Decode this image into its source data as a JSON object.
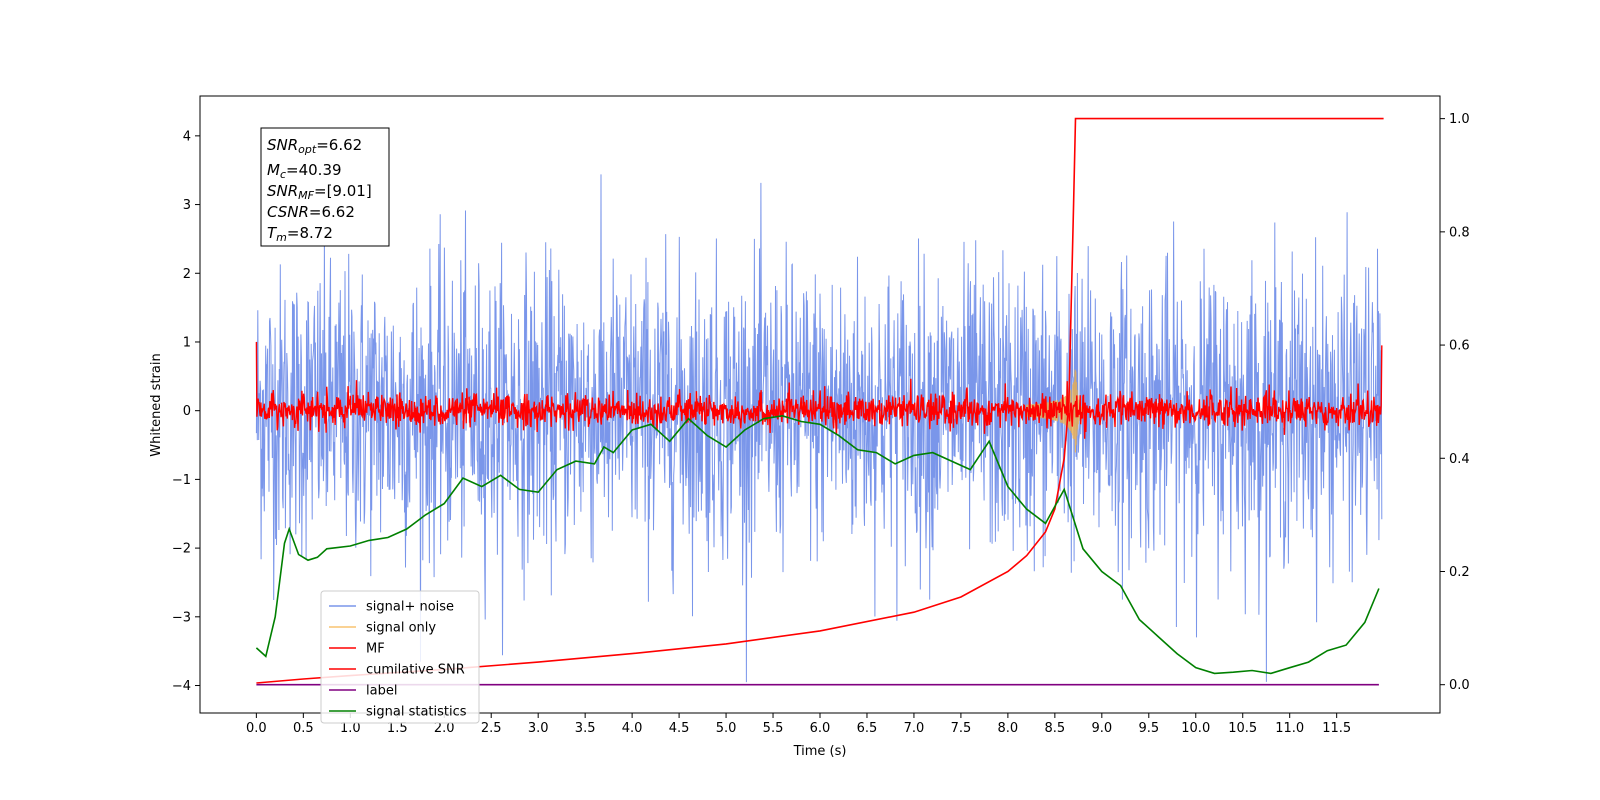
{
  "chart_data": {
    "type": "line",
    "xlabel": "Time (s)",
    "ylabel": "Whitened strain",
    "xlim": [
      -0.6,
      12.6
    ],
    "ylim": [
      -4.4,
      4.58
    ],
    "y2lim": [
      -0.05,
      1.04
    ],
    "grid": false,
    "legend_position": "lower-left",
    "x_ticks": [
      "0.0",
      "0.5",
      "1.0",
      "1.5",
      "2.0",
      "2.5",
      "3.0",
      "3.5",
      "4.0",
      "4.5",
      "5.0",
      "5.5",
      "6.0",
      "6.5",
      "7.0",
      "7.5",
      "8.0",
      "8.5",
      "9.0",
      "9.5",
      "10.0",
      "10.5",
      "11.0",
      "11.5"
    ],
    "y_ticks": [
      "4",
      "3",
      "2",
      "1",
      "0",
      "−1",
      "−2",
      "−3",
      "−4"
    ],
    "y2_ticks": [
      "1.0",
      "0.8",
      "0.6",
      "0.4",
      "0.2",
      "0.0"
    ],
    "annotation": {
      "snr_opt": {
        "label": "SNR",
        "sub": "opt",
        "value": "=6.62"
      },
      "mc": {
        "label": "M",
        "sub": "c",
        "value": "=40.39"
      },
      "snr_mf": {
        "label": "SNR",
        "sub": "MF",
        "value": "=[9.01]"
      },
      "csnr": {
        "label": "CSNR",
        "sub": "",
        "value": "=6.62"
      },
      "tm": {
        "label": "T",
        "sub": "m",
        "value": "=8.72"
      }
    },
    "series": [
      {
        "name": "signal+ noise",
        "color": "#4169e1",
        "axis": "left",
        "kind": "noise",
        "amplitude": 1.0,
        "peak_max": 4.15,
        "peak_min": -3.95
      },
      {
        "name": "signal only",
        "color": "#f5b041",
        "axis": "left",
        "kind": "chirp",
        "merger_time": 8.72,
        "peak_amplitude": 0.65
      },
      {
        "name": "MF",
        "color": "#ff0000",
        "axis": "left",
        "kind": "noise",
        "amplitude": 0.12,
        "start_value": 1.0,
        "end_value": 0.95
      },
      {
        "name": "cumilative SNR",
        "color": "#ff0000",
        "axis": "right",
        "x": [
          0.0,
          0.5,
          1.0,
          2.0,
          3.0,
          4.0,
          5.0,
          6.0,
          7.0,
          7.5,
          8.0,
          8.2,
          8.4,
          8.5,
          8.6,
          8.65,
          8.7,
          8.72,
          12.0
        ],
        "y": [
          0.003,
          0.01,
          0.016,
          0.027,
          0.04,
          0.055,
          0.072,
          0.095,
          0.128,
          0.155,
          0.2,
          0.228,
          0.27,
          0.31,
          0.4,
          0.5,
          0.85,
          1.0,
          1.0
        ]
      },
      {
        "name": "label",
        "color": "#800080",
        "axis": "right",
        "x": [
          0.0,
          11.95
        ],
        "y": [
          0.0,
          0.0
        ]
      },
      {
        "name": "signal statistics",
        "color": "#008000",
        "axis": "right",
        "x": [
          0.0,
          0.1,
          0.2,
          0.3,
          0.35,
          0.45,
          0.55,
          0.65,
          0.75,
          0.85,
          1.0,
          1.2,
          1.4,
          1.6,
          1.8,
          2.0,
          2.2,
          2.4,
          2.6,
          2.8,
          3.0,
          3.2,
          3.4,
          3.6,
          3.7,
          3.8,
          4.0,
          4.2,
          4.4,
          4.6,
          4.8,
          5.0,
          5.2,
          5.4,
          5.6,
          5.8,
          6.0,
          6.2,
          6.4,
          6.6,
          6.8,
          7.0,
          7.2,
          7.4,
          7.6,
          7.8,
          8.0,
          8.2,
          8.4,
          8.6,
          8.8,
          9.0,
          9.2,
          9.4,
          9.6,
          9.8,
          10.0,
          10.2,
          10.4,
          10.6,
          10.8,
          11.0,
          11.2,
          11.4,
          11.6,
          11.8,
          11.95
        ],
        "y": [
          0.065,
          0.05,
          0.12,
          0.25,
          0.275,
          0.23,
          0.22,
          0.225,
          0.24,
          0.242,
          0.245,
          0.255,
          0.26,
          0.275,
          0.3,
          0.32,
          0.365,
          0.35,
          0.37,
          0.345,
          0.34,
          0.38,
          0.395,
          0.39,
          0.42,
          0.41,
          0.45,
          0.46,
          0.43,
          0.47,
          0.44,
          0.42,
          0.45,
          0.47,
          0.475,
          0.465,
          0.46,
          0.44,
          0.415,
          0.41,
          0.39,
          0.405,
          0.41,
          0.395,
          0.38,
          0.43,
          0.35,
          0.31,
          0.285,
          0.345,
          0.24,
          0.2,
          0.175,
          0.115,
          0.085,
          0.055,
          0.03,
          0.02,
          0.022,
          0.025,
          0.02,
          0.03,
          0.04,
          0.06,
          0.07,
          0.11,
          0.17
        ]
      }
    ]
  }
}
